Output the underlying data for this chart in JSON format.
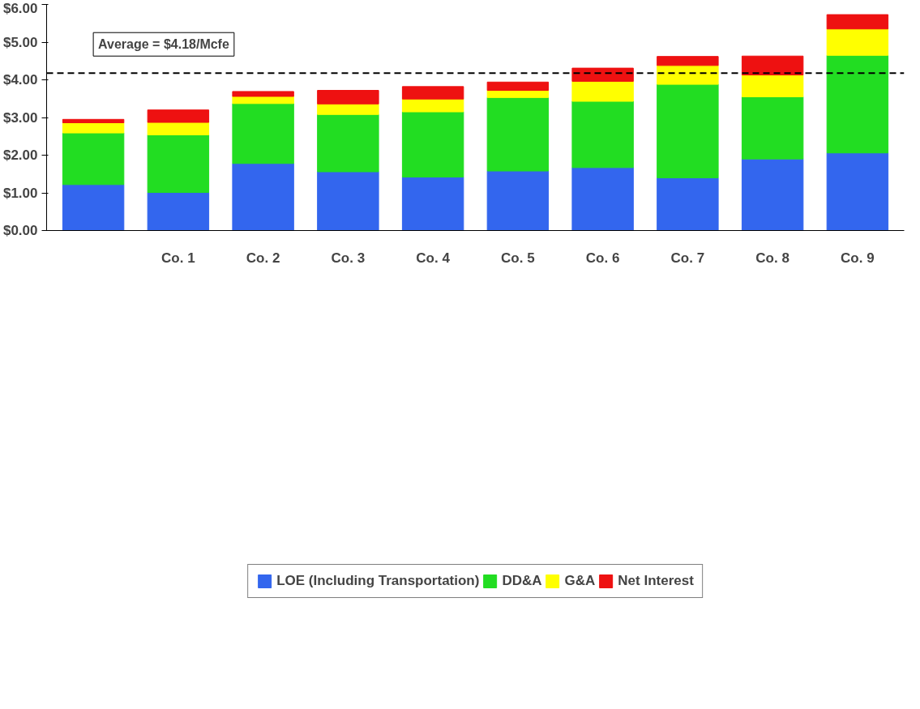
{
  "chart_data": {
    "type": "bar",
    "stacked": true,
    "categories": [
      null,
      "Co. 1",
      "Co. 2",
      "Co. 3",
      "Co. 4",
      "Co. 5",
      "Co. 6",
      "Co. 7",
      "Co. 8",
      "Co. 9"
    ],
    "series": [
      {
        "name": "LOE (Including Transportation)",
        "color": "#3366ee",
        "values": [
          1.22,
          1.01,
          1.78,
          1.56,
          1.42,
          1.58,
          1.67,
          1.4,
          1.9,
          2.06
        ]
      },
      {
        "name": "DD&A",
        "color": "#22dd22",
        "values": [
          1.37,
          1.53,
          1.59,
          1.52,
          1.73,
          1.95,
          1.76,
          2.48,
          1.65,
          2.59
        ]
      },
      {
        "name": "G&A",
        "color": "#ffff00",
        "values": [
          0.27,
          0.33,
          0.19,
          0.28,
          0.34,
          0.19,
          0.53,
          0.5,
          0.58,
          0.7
        ]
      },
      {
        "name": "Net Interest",
        "color": "#ee1111",
        "values": [
          0.09,
          0.33,
          0.13,
          0.36,
          0.33,
          0.22,
          0.35,
          0.24,
          0.5,
          0.38
        ]
      }
    ],
    "ylim": [
      0,
      6
    ],
    "yticks": [
      {
        "value": 0,
        "label": "$0.00"
      },
      {
        "value": 1,
        "label": "$1.00"
      },
      {
        "value": 2,
        "label": "$2.00"
      },
      {
        "value": 3,
        "label": "$3.00"
      },
      {
        "value": 4,
        "label": "$4.00"
      },
      {
        "value": 5,
        "label": "$5.00"
      },
      {
        "value": 6,
        "label": "$6.00"
      }
    ],
    "ref_lines": [
      {
        "axis": "y",
        "value": 4.18,
        "label": "Average = $4.18/Mcfe",
        "color": "#000000",
        "line_style": "dashed"
      }
    ],
    "grid": false,
    "legend": "bottom"
  }
}
